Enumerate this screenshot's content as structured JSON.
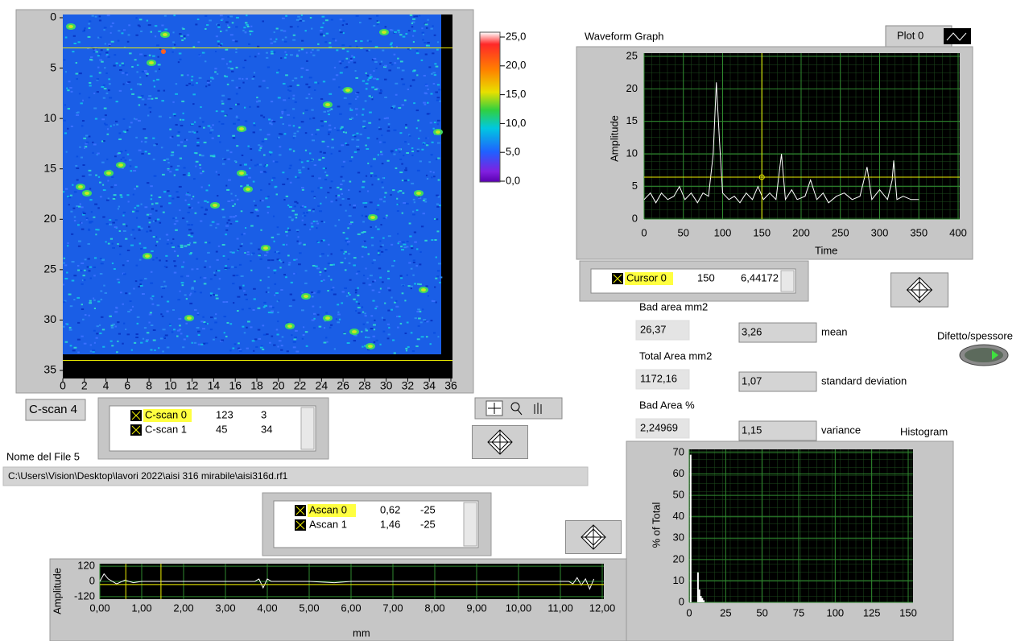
{
  "cscan_graph": {
    "xlim": [
      0,
      36
    ],
    "ylim": [
      0,
      35
    ],
    "xticks": [
      0,
      2,
      4,
      6,
      8,
      10,
      12,
      14,
      16,
      18,
      20,
      22,
      24,
      26,
      28,
      30,
      32,
      34,
      36
    ],
    "yticks": [
      0,
      5,
      10,
      15,
      20,
      25,
      30,
      35
    ],
    "cursors": [
      {
        "name": "C-scan 0",
        "x": 123,
        "y": 3
      },
      {
        "name": "C-scan 1",
        "x": 45,
        "y": 34
      }
    ]
  },
  "colorbar": {
    "lim": [
      0,
      25
    ],
    "ticks": [
      {
        "value": 25,
        "label": "25,0"
      },
      {
        "value": 20,
        "label": "20,0"
      },
      {
        "value": 15,
        "label": "15,0"
      },
      {
        "value": 10,
        "label": "10,0"
      },
      {
        "value": 5,
        "label": "5,0"
      },
      {
        "value": 0,
        "label": "0,0"
      }
    ]
  },
  "cscan_button": "C-scan 4",
  "file": {
    "label": "Nome del File 5",
    "path": "C:\\Users\\Vision\\Desktop\\lavori 2022\\aisi 316 mirabile\\aisi316d.rf1"
  },
  "ascan_graph": {
    "ylabel": "Amplitude",
    "xlabel": "mm",
    "xlim": [
      0,
      12
    ],
    "ylim": [
      -140,
      140
    ],
    "xticks": [
      {
        "value": 0,
        "label": "0,00"
      },
      {
        "value": 1,
        "label": "1,00"
      },
      {
        "value": 2,
        "label": "2,00"
      },
      {
        "value": 3,
        "label": "3,00"
      },
      {
        "value": 4,
        "label": "4,00"
      },
      {
        "value": 5,
        "label": "5,00"
      },
      {
        "value": 6,
        "label": "6,00"
      },
      {
        "value": 7,
        "label": "7,00"
      },
      {
        "value": 8,
        "label": "8,00"
      },
      {
        "value": 9,
        "label": "9,00"
      },
      {
        "value": 10,
        "label": "10,00"
      },
      {
        "value": 11,
        "label": "11,00"
      },
      {
        "value": 12,
        "label": "12,00"
      }
    ],
    "yticks": [
      120,
      0,
      -120
    ],
    "x": [
      0,
      0.1,
      0.2,
      0.4,
      0.6,
      0.8,
      1.0,
      1.5,
      2,
      3,
      3.7,
      3.8,
      3.9,
      4.0,
      4.1,
      5,
      5.6,
      6,
      8,
      10,
      11.2,
      11.3,
      11.4,
      11.5,
      11.6,
      11.7,
      11.8
    ],
    "values": [
      0,
      60,
      20,
      -20,
      10,
      -10,
      0,
      0,
      0,
      0,
      0,
      20,
      -50,
      20,
      0,
      0,
      -10,
      0,
      0,
      0,
      0,
      -20,
      30,
      -30,
      20,
      -60,
      20
    ],
    "cursors": [
      {
        "name": "Ascan 0",
        "x": {
          "value": 0.62,
          "label": "0,62"
        },
        "y": -25
      },
      {
        "name": "Ascan 1",
        "x": {
          "value": 1.46,
          "label": "1,46"
        },
        "y": -25
      }
    ]
  },
  "waveform_graph": {
    "title": "Waveform Graph",
    "legend": "Plot 0",
    "xlabel": "Time",
    "ylabel": "Amplitude",
    "xlim": [
      0,
      400
    ],
    "ylim": [
      0,
      25
    ],
    "xticks": [
      0,
      50,
      100,
      150,
      200,
      250,
      300,
      350,
      400
    ],
    "yticks": [
      0,
      5,
      10,
      15,
      20,
      25
    ],
    "x": [
      0,
      8,
      15,
      22,
      30,
      38,
      45,
      52,
      60,
      68,
      75,
      82,
      88,
      92,
      96,
      100,
      108,
      115,
      122,
      130,
      138,
      145,
      152,
      160,
      168,
      175,
      180,
      188,
      195,
      205,
      212,
      220,
      228,
      235,
      245,
      255,
      265,
      275,
      284,
      290,
      300,
      310,
      316,
      318,
      322,
      330,
      340,
      350
    ],
    "values": [
      3,
      4,
      2.5,
      4,
      3,
      3.5,
      5,
      3,
      4,
      2.5,
      4,
      3.5,
      10,
      21,
      12,
      4,
      3,
      3.5,
      2.5,
      4,
      3,
      5,
      3,
      4,
      3,
      10,
      3,
      4.5,
      3,
      3.5,
      6,
      3,
      4,
      2.5,
      3.5,
      4,
      3,
      3.5,
      8,
      3,
      4.5,
      3,
      6,
      9,
      3,
      3.5,
      3,
      3
    ],
    "cursors": [
      {
        "name": "Cursor 0",
        "x": 150,
        "y": {
          "value": 6.44172,
          "label": "6,44172"
        }
      }
    ]
  },
  "stats": [
    {
      "label": "Bad area mm2",
      "value": "26,37"
    },
    {
      "label": "Total Area mm2",
      "value": "1172,16"
    },
    {
      "label": "Bad Area %",
      "value": "2,24969"
    }
  ],
  "measures": [
    {
      "value": "3,26",
      "label": "mean"
    },
    {
      "value": "1,07",
      "label": "standard deviation"
    },
    {
      "value": "1,15",
      "label": "variance"
    }
  ],
  "button": "Difetto/spessore",
  "histogram": {
    "title": "Histogram",
    "ylabel": "% of Total",
    "xlim": [
      0,
      150
    ],
    "ylim": [
      0,
      70
    ],
    "xticks": [
      0,
      25,
      50,
      75,
      100,
      125,
      150
    ],
    "yticks": [
      0,
      10,
      20,
      30,
      40,
      50,
      60,
      70
    ],
    "x": [
      1,
      6,
      7,
      8,
      9,
      10
    ],
    "values": [
      69,
      14,
      6,
      3,
      2,
      1
    ]
  }
}
